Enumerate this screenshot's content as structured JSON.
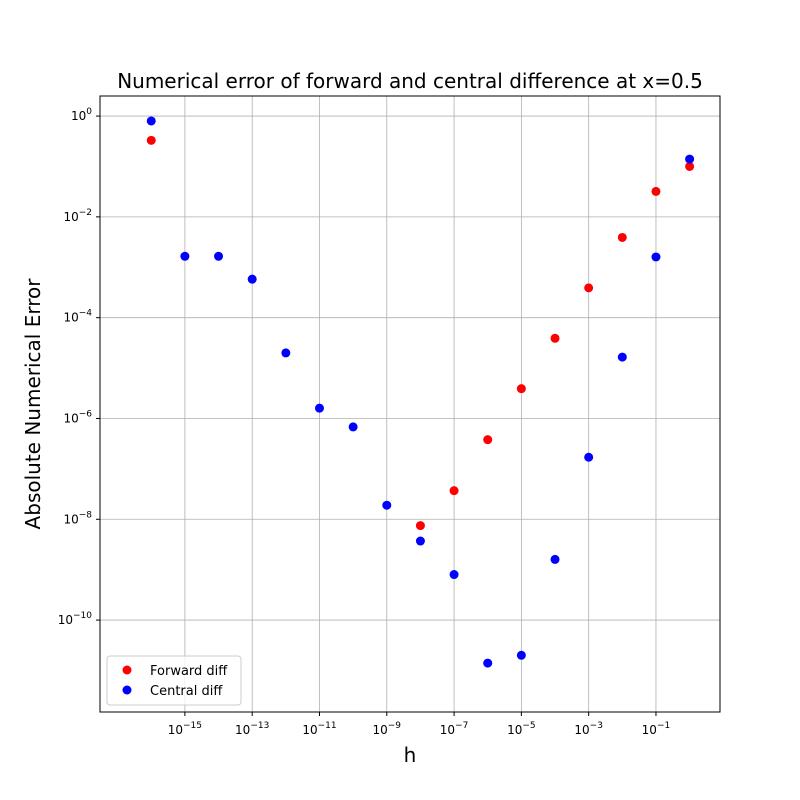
{
  "chart_data": {
    "type": "scatter",
    "title": "Numerical error of forward and central difference at x=0.5",
    "xlabel": "h",
    "ylabel": "Absolute Numerical Error",
    "x_scale": "log",
    "y_scale": "log",
    "xlim": [
      3e-18,
      8
    ],
    "ylim": [
      1.5e-12,
      2.5
    ],
    "grid": true,
    "legend_position": "lower-left",
    "x_ticks": [
      {
        "base": "10",
        "exp": "−15",
        "value": 1e-15
      },
      {
        "base": "10",
        "exp": "−13",
        "value": 1e-13
      },
      {
        "base": "10",
        "exp": "−11",
        "value": 1e-11
      },
      {
        "base": "10",
        "exp": "−9",
        "value": 1e-09
      },
      {
        "base": "10",
        "exp": "−7",
        "value": 1e-07
      },
      {
        "base": "10",
        "exp": "−5",
        "value": 1e-05
      },
      {
        "base": "10",
        "exp": "−3",
        "value": 0.001
      },
      {
        "base": "10",
        "exp": "−1",
        "value": 0.1
      }
    ],
    "y_ticks": [
      {
        "base": "10",
        "exp": "0",
        "value": 1
      },
      {
        "base": "10",
        "exp": "−2",
        "value": 0.01
      },
      {
        "base": "10",
        "exp": "−4",
        "value": 0.0001
      },
      {
        "base": "10",
        "exp": "−6",
        "value": 1e-06
      },
      {
        "base": "10",
        "exp": "−8",
        "value": 1e-08
      },
      {
        "base": "10",
        "exp": "−10",
        "value": 1e-10
      }
    ],
    "series": [
      {
        "name": "Forward diff",
        "color": "#ff0000",
        "points": [
          {
            "x": 1e-16,
            "y": 0.33
          },
          {
            "x": 1e-08,
            "y": 7.5e-09
          },
          {
            "x": 1e-07,
            "y": 3.7e-08
          },
          {
            "x": 1e-06,
            "y": 3.8e-07
          },
          {
            "x": 1e-05,
            "y": 3.9e-06
          },
          {
            "x": 0.0001,
            "y": 3.9e-05
          },
          {
            "x": 0.001,
            "y": 0.00039
          },
          {
            "x": 0.01,
            "y": 0.0039
          },
          {
            "x": 0.1,
            "y": 0.032
          },
          {
            "x": 1,
            "y": 0.1
          }
        ]
      },
      {
        "name": "Central diff",
        "color": "#0000ff",
        "points": [
          {
            "x": 1e-16,
            "y": 0.8
          },
          {
            "x": 1e-15,
            "y": 0.00165
          },
          {
            "x": 1e-14,
            "y": 0.00165
          },
          {
            "x": 1e-13,
            "y": 0.00058
          },
          {
            "x": 1e-12,
            "y": 2e-05
          },
          {
            "x": 1e-11,
            "y": 1.6e-06
          },
          {
            "x": 1e-10,
            "y": 6.8e-07
          },
          {
            "x": 1e-09,
            "y": 1.9e-08
          },
          {
            "x": 1e-08,
            "y": 3.7e-09
          },
          {
            "x": 1e-07,
            "y": 8e-10
          },
          {
            "x": 1e-06,
            "y": 1.4e-11
          },
          {
            "x": 1e-05,
            "y": 2e-11
          },
          {
            "x": 0.0001,
            "y": 1.6e-09
          },
          {
            "x": 0.001,
            "y": 1.7e-07
          },
          {
            "x": 0.01,
            "y": 1.65e-05
          },
          {
            "x": 0.1,
            "y": 0.0016
          },
          {
            "x": 1,
            "y": 0.14
          }
        ]
      }
    ]
  }
}
